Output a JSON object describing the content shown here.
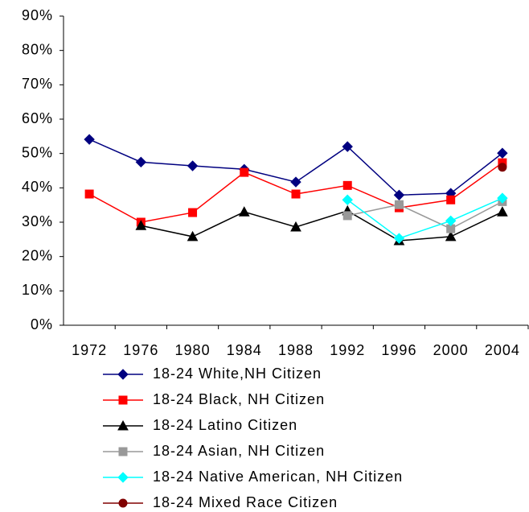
{
  "chart_data": {
    "type": "line",
    "categories": [
      "1972",
      "1976",
      "1980",
      "1984",
      "1988",
      "1992",
      "1996",
      "2000",
      "2004"
    ],
    "ylim": [
      0,
      90
    ],
    "yticks": [
      {
        "value": 0,
        "label": "0%"
      },
      {
        "value": 10,
        "label": "10%"
      },
      {
        "value": 20,
        "label": "20%"
      },
      {
        "value": 30,
        "label": "30%"
      },
      {
        "value": 40,
        "label": "40%"
      },
      {
        "value": 50,
        "label": "50%"
      },
      {
        "value": 60,
        "label": "60%"
      },
      {
        "value": 70,
        "label": "70%"
      },
      {
        "value": 80,
        "label": "80%"
      },
      {
        "value": 90,
        "label": "90%"
      }
    ],
    "grid": false,
    "legend": "bottom",
    "series": [
      {
        "name": "18-24 White,NH Citizen",
        "color": "#000080",
        "marker": "diamond",
        "values": [
          54.1,
          47.5,
          46.4,
          45.4,
          41.7,
          52,
          37.9,
          38.4,
          50.1
        ]
      },
      {
        "name": "18-24 Black, NH Citizen",
        "color": "#ff0000",
        "marker": "square",
        "values": [
          38.2,
          30,
          32.8,
          44.5,
          38.2,
          40.7,
          34.2,
          36.5,
          47.3
        ]
      },
      {
        "name": "18-24 Latino Citizen",
        "color": "#000000",
        "marker": "triangle",
        "values": [
          null,
          29,
          25.8,
          33,
          28.6,
          33.3,
          24.6,
          25.8,
          33
        ]
      },
      {
        "name": "18-24 Asian, NH Citizen",
        "color": "#999999",
        "marker": "square",
        "values": [
          null,
          null,
          null,
          null,
          null,
          31.9,
          35.1,
          28.1,
          36
        ]
      },
      {
        "name": "18-24 Native American, NH Citizen",
        "color": "#00ffff",
        "marker": "diamond",
        "values": [
          null,
          null,
          null,
          null,
          null,
          36.5,
          25.3,
          30.4,
          37
        ]
      },
      {
        "name": "18-24 Mixed Race Citizen",
        "color": "#800000",
        "marker": "circle",
        "values": [
          null,
          null,
          null,
          null,
          null,
          null,
          null,
          null,
          46
        ]
      }
    ]
  }
}
